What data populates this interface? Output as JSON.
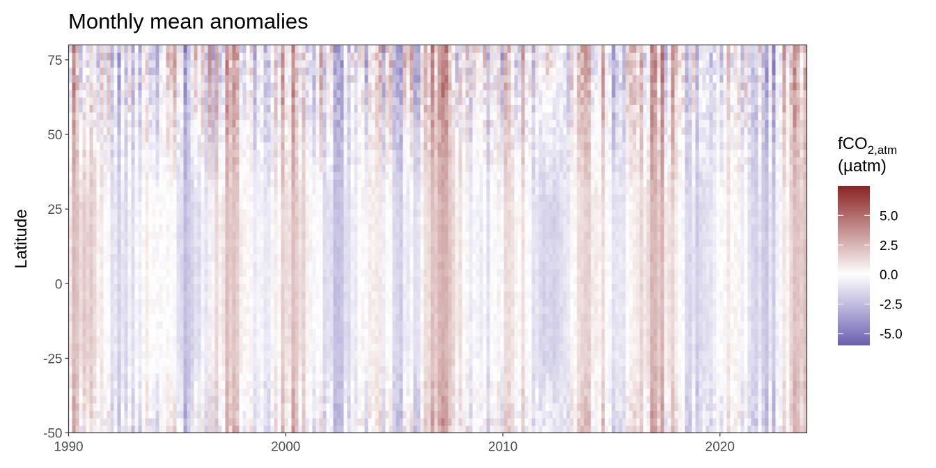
{
  "chart_data": {
    "type": "heatmap",
    "title": "Monthly mean anomalies",
    "xlabel": "",
    "ylabel": "Latitude",
    "x_ticks": [
      1990,
      2000,
      2010,
      2020
    ],
    "x_tick_labels": [
      "1990",
      "2000",
      "2010",
      "2020"
    ],
    "y_ticks": [
      -50,
      -25,
      0,
      25,
      50,
      75
    ],
    "y_tick_labels": [
      "-50",
      "-25",
      "0",
      "25",
      "50",
      "75"
    ],
    "xlim": [
      1990,
      2024
    ],
    "ylim": [
      -50,
      80
    ],
    "legend": {
      "title_main": "fCO",
      "title_sub": "2,atm",
      "title_unit": "(µatm)",
      "placement": "right",
      "range": [
        -6,
        7.5
      ],
      "ticks": [
        -5.0,
        -2.5,
        0.0,
        2.5,
        5.0
      ],
      "tick_labels": [
        "-5.0",
        "-2.5",
        "0.0",
        "2.5",
        "5.0"
      ],
      "colors": {
        "low": "#6a5fb0",
        "mid": "#ffffff",
        "high": "#8b2323"
      }
    },
    "grid": false
  }
}
